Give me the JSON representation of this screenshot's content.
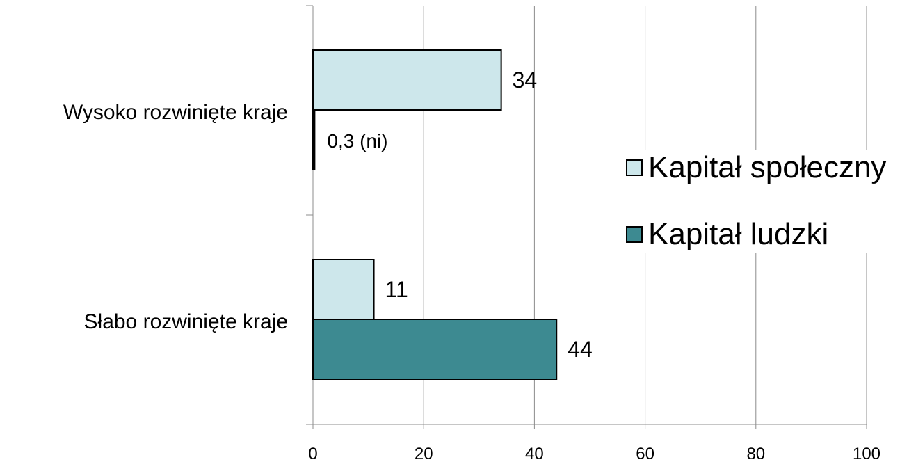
{
  "chart_data": {
    "type": "bar",
    "orientation": "horizontal",
    "categories": [
      "Wysoko rozwinięte kraje",
      "Słabo rozwinięte kraje"
    ],
    "series": [
      {
        "name": "Kapitał społeczny",
        "values": [
          34,
          11
        ],
        "labels": [
          "34",
          "11"
        ],
        "color": "#cde7eb"
      },
      {
        "name": "Kapitał ludzki",
        "values": [
          0.3,
          44
        ],
        "labels": [
          "0,3 (ni)",
          "44"
        ],
        "color": "#3d8a91"
      }
    ],
    "xlim": [
      0,
      100
    ],
    "x_ticks": [
      "0",
      "20",
      "40",
      "60",
      "80",
      "100"
    ],
    "grid": true,
    "legend_position": "right"
  }
}
